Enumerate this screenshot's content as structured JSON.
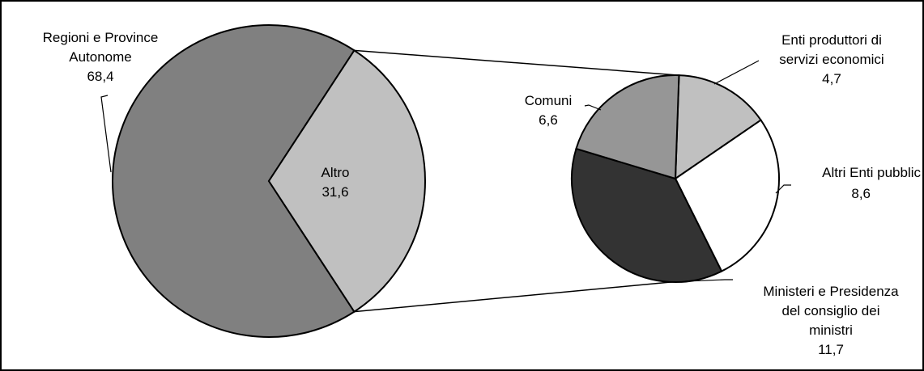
{
  "chart_data": {
    "type": "pie",
    "title": "",
    "main_pie": {
      "slices": [
        {
          "label_lines": [
            "Regioni e Province",
            "Autonome"
          ],
          "value": 68.4,
          "value_label": "68,4",
          "color": "#808080"
        },
        {
          "label_lines": [
            "Altro"
          ],
          "value": 31.6,
          "value_label": "31,6",
          "color": "#c0c0c0"
        }
      ]
    },
    "detail_pie": {
      "slices": [
        {
          "label_lines": [
            "Enti produttori di",
            "servizi economici"
          ],
          "value": 4.7,
          "value_label": "4,7",
          "color": "#c0c0c0"
        },
        {
          "label_lines": [
            "Altri Enti pubblic"
          ],
          "value": 8.6,
          "value_label": "8,6",
          "color": "#ffffff"
        },
        {
          "label_lines": [
            "Ministeri e Presidenza",
            "del consiglio dei",
            "ministri"
          ],
          "value": 11.7,
          "value_label": "11,7",
          "color": "#333333"
        },
        {
          "label_lines": [
            "Comuni"
          ],
          "value": 6.6,
          "value_label": "6,6",
          "color": "#969696"
        }
      ]
    },
    "legend": "none",
    "grid": false
  }
}
